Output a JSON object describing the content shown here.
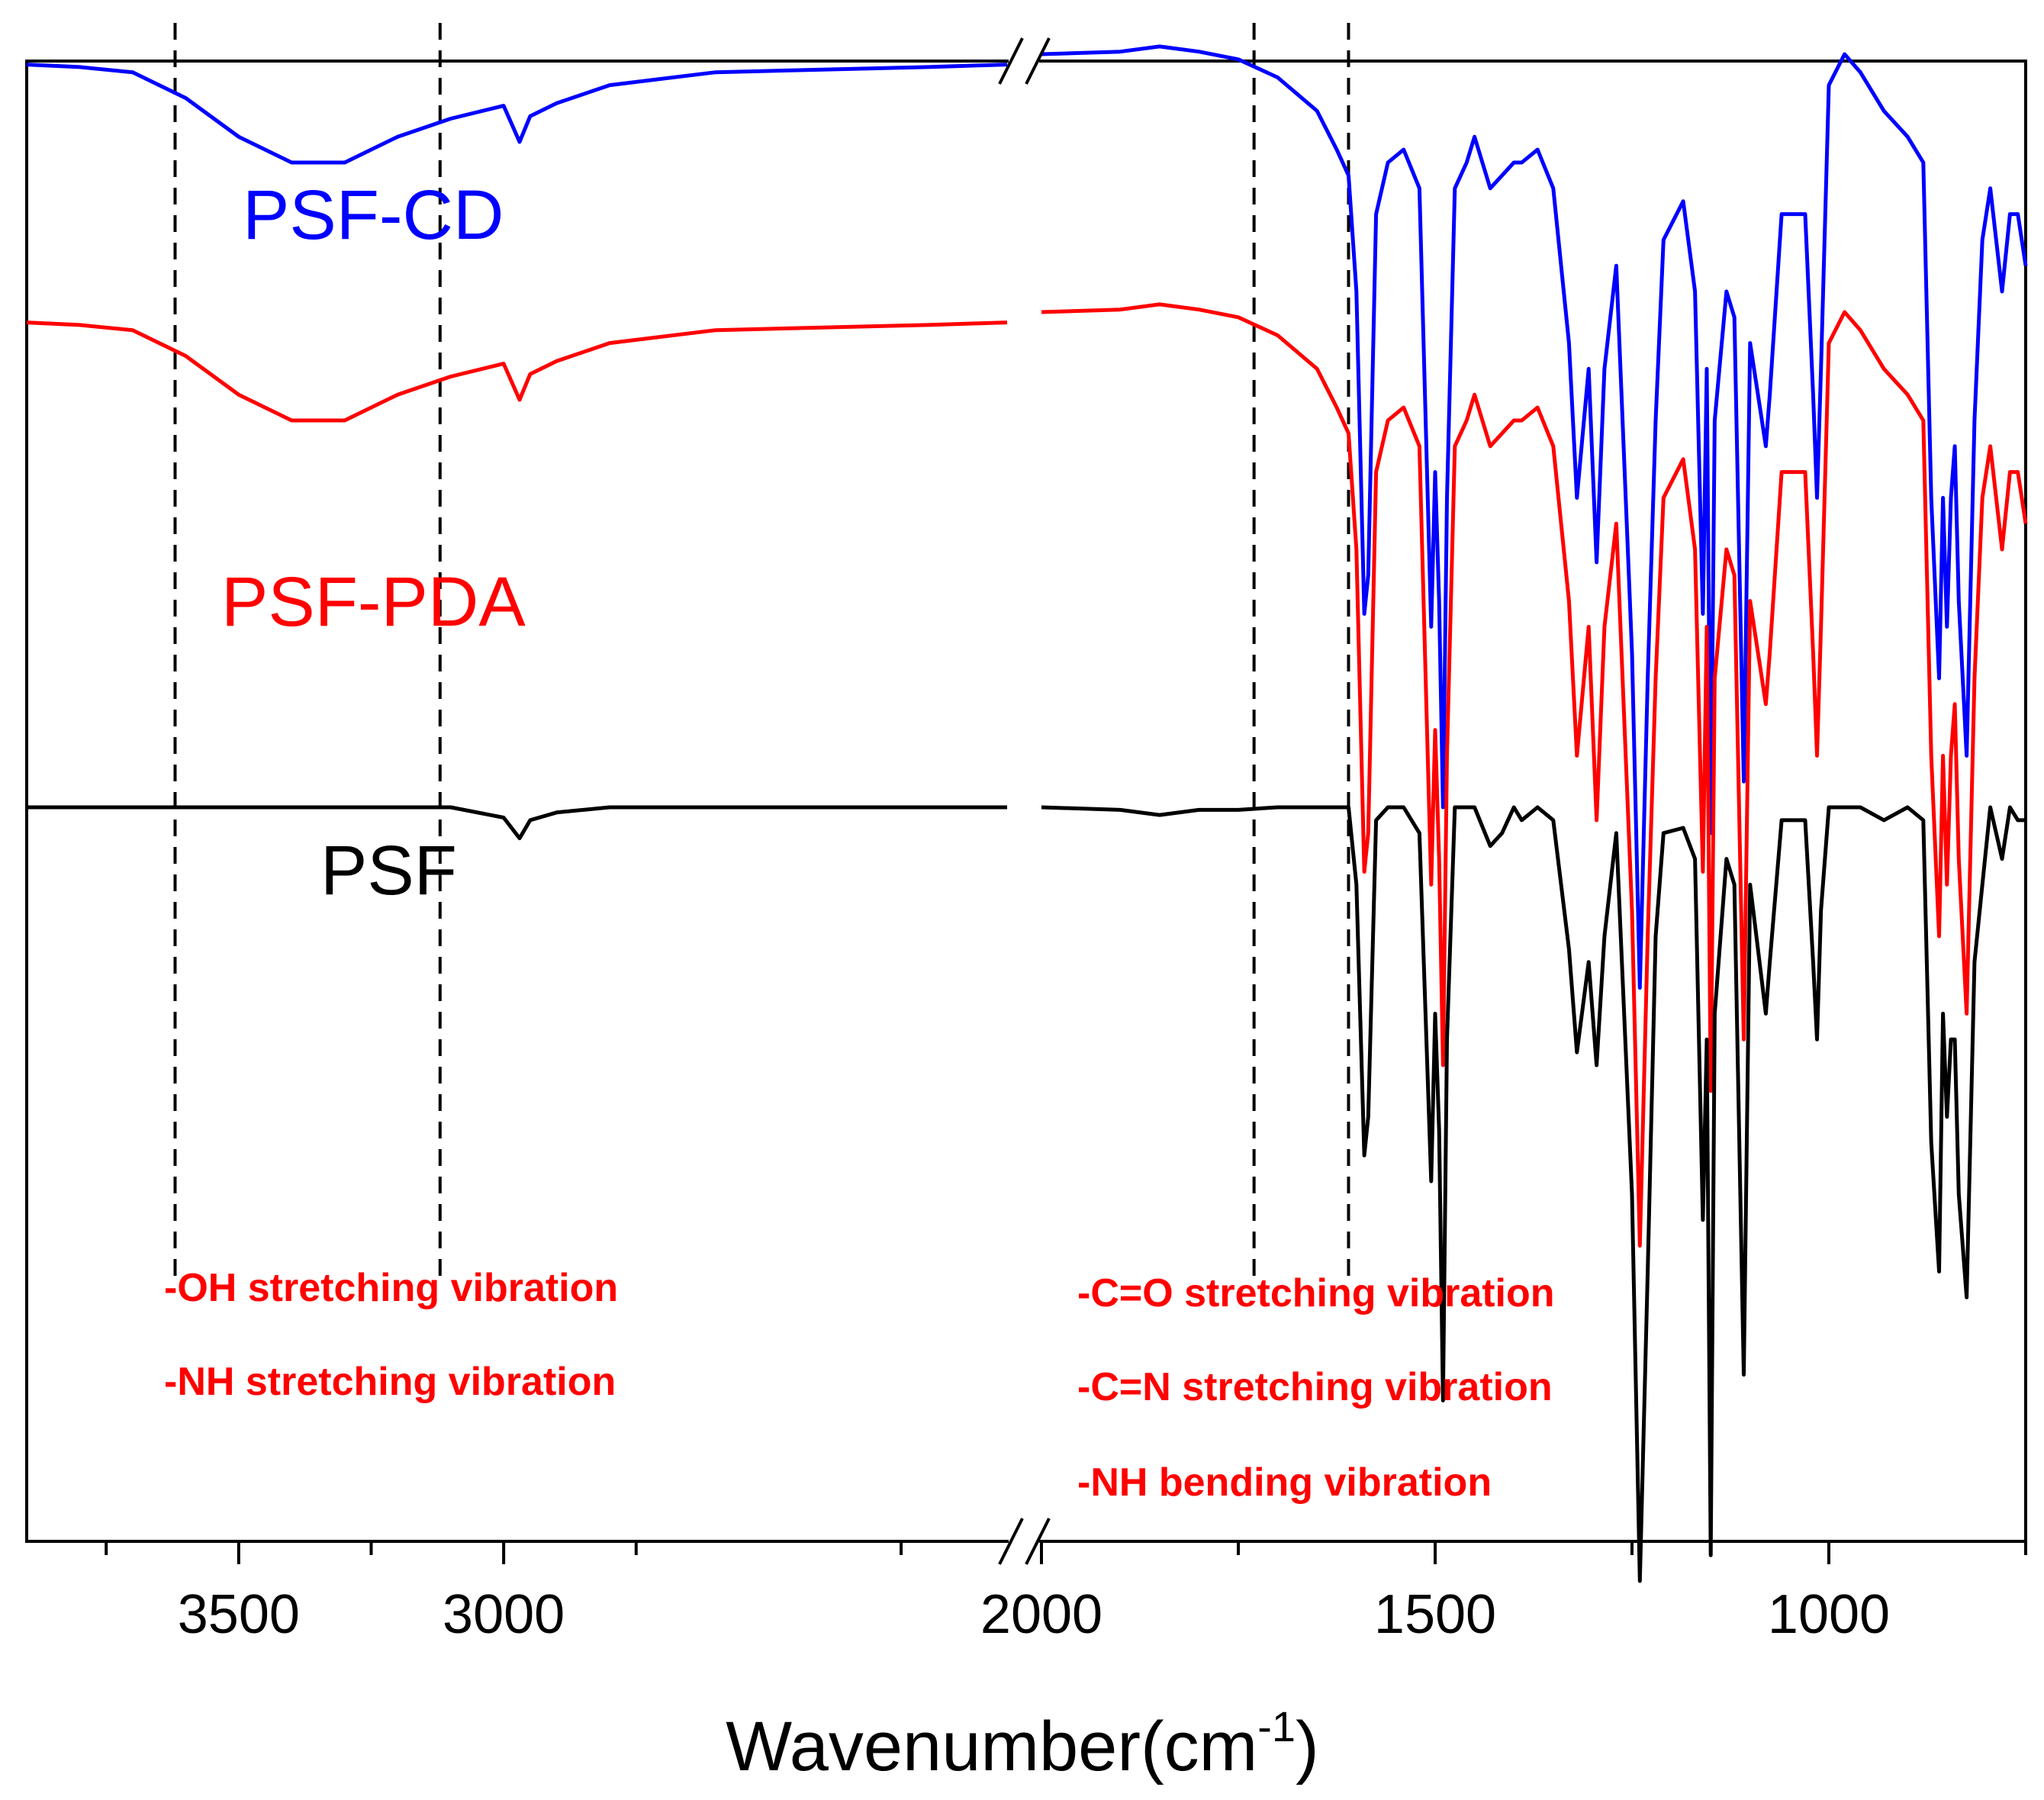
{
  "chart_data": {
    "type": "line",
    "title": "",
    "xlabel": "Wavenumber(cm",
    "xlabel_sup": "-1",
    "ylabel": "",
    "x_axis": {
      "reversed": true,
      "broken": true,
      "segments": [
        {
          "xlim": [
            3900,
            2050
          ],
          "ticks": [
            3500,
            3000
          ]
        },
        {
          "xlim": [
            2000,
            750
          ],
          "ticks": [
            2000,
            1500,
            1000
          ]
        }
      ],
      "minor_ticks": [
        3750,
        3250,
        2750,
        2250,
        1750,
        1250,
        750
      ]
    },
    "y_ticks_shown": false,
    "grid": false,
    "legend": "none",
    "series_labels_inline": true,
    "series": [
      {
        "name": "PSF-CD",
        "color": "#0000ff",
        "label_color": "#0000ff",
        "offset": 2.0,
        "x": [
          3900,
          3800,
          3700,
          3600,
          3500,
          3400,
          3300,
          3200,
          3100,
          3000,
          2970,
          2950,
          2900,
          2800,
          2600,
          2400,
          2200,
          2050,
          2000,
          1900,
          1850,
          1800,
          1750,
          1700,
          1650,
          1625,
          1610,
          1600,
          1590,
          1585,
          1575,
          1560,
          1540,
          1520,
          1505,
          1500,
          1495,
          1490,
          1485,
          1475,
          1460,
          1450,
          1430,
          1415,
          1400,
          1390,
          1370,
          1350,
          1330,
          1320,
          1305,
          1295,
          1285,
          1270,
          1250,
          1240,
          1230,
          1220,
          1210,
          1185,
          1170,
          1160,
          1155,
          1150,
          1145,
          1130,
          1120,
          1108,
          1100,
          1080,
          1075,
          1060,
          1030,
          1020,
          1015,
          1010,
          1000,
          980,
          960,
          930,
          900,
          880,
          870,
          860,
          855,
          850,
          845,
          840,
          835,
          825,
          815,
          805,
          795,
          780,
          770,
          760,
          750
        ],
        "y": [
          0.88,
          0.87,
          0.85,
          0.75,
          0.6,
          0.5,
          0.5,
          0.6,
          0.67,
          0.72,
          0.58,
          0.68,
          0.73,
          0.8,
          0.85,
          0.86,
          0.87,
          0.88,
          0.92,
          0.93,
          0.95,
          0.93,
          0.9,
          0.83,
          0.7,
          0.55,
          0.45,
          0.0,
          -1.25,
          -1.1,
          0.3,
          0.5,
          0.55,
          0.4,
          -1.3,
          -0.7,
          -1.2,
          -2.0,
          -0.8,
          0.4,
          0.5,
          0.6,
          0.4,
          0.45,
          0.5,
          0.5,
          0.55,
          0.4,
          -0.2,
          -0.8,
          -0.3,
          -1.05,
          -0.3,
          0.1,
          -1.4,
          -2.7,
          -1.5,
          -0.5,
          0.2,
          0.35,
          0.0,
          -1.25,
          -0.3,
          -2.1,
          -0.5,
          0.0,
          -0.1,
          -1.9,
          -0.2,
          -0.6,
          -0.4,
          0.3,
          0.3,
          -0.4,
          -0.8,
          -0.3,
          0.8,
          0.92,
          0.85,
          0.7,
          0.6,
          0.5,
          -0.8,
          -1.5,
          -0.8,
          -1.3,
          -0.8,
          -0.6,
          -1.2,
          -1.8,
          -0.5,
          0.2,
          0.4,
          0.0,
          0.3,
          0.3,
          0.1
        ]
      },
      {
        "name": "PSF-PDA",
        "color": "#ff0000",
        "label_color": "#ff0000",
        "offset": 1.0,
        "x": [
          3900,
          3800,
          3700,
          3600,
          3500,
          3400,
          3300,
          3200,
          3100,
          3000,
          2970,
          2950,
          2900,
          2800,
          2600,
          2400,
          2200,
          2050,
          2000,
          1900,
          1850,
          1800,
          1750,
          1700,
          1650,
          1625,
          1610,
          1600,
          1590,
          1585,
          1575,
          1560,
          1540,
          1520,
          1505,
          1500,
          1495,
          1490,
          1485,
          1475,
          1460,
          1450,
          1430,
          1415,
          1400,
          1390,
          1370,
          1350,
          1330,
          1320,
          1305,
          1295,
          1285,
          1270,
          1250,
          1240,
          1230,
          1220,
          1210,
          1185,
          1170,
          1160,
          1155,
          1150,
          1145,
          1130,
          1120,
          1108,
          1100,
          1080,
          1075,
          1060,
          1030,
          1020,
          1015,
          1010,
          1000,
          980,
          960,
          930,
          900,
          880,
          870,
          860,
          855,
          850,
          845,
          840,
          835,
          825,
          815,
          805,
          795,
          780,
          770,
          760,
          750
        ],
        "y": [
          0.88,
          0.87,
          0.85,
          0.75,
          0.6,
          0.5,
          0.5,
          0.6,
          0.67,
          0.72,
          0.58,
          0.68,
          0.73,
          0.8,
          0.85,
          0.86,
          0.87,
          0.88,
          0.92,
          0.93,
          0.95,
          0.93,
          0.9,
          0.83,
          0.7,
          0.55,
          0.45,
          0.0,
          -1.25,
          -1.1,
          0.3,
          0.5,
          0.55,
          0.4,
          -1.3,
          -0.7,
          -1.2,
          -2.0,
          -0.8,
          0.4,
          0.5,
          0.6,
          0.4,
          0.45,
          0.5,
          0.5,
          0.55,
          0.4,
          -0.2,
          -0.8,
          -0.3,
          -1.05,
          -0.3,
          0.1,
          -1.4,
          -2.7,
          -1.5,
          -0.5,
          0.2,
          0.35,
          0.0,
          -1.25,
          -0.3,
          -2.1,
          -0.5,
          0.0,
          -0.1,
          -1.9,
          -0.2,
          -0.6,
          -0.4,
          0.3,
          0.3,
          -0.4,
          -0.8,
          -0.3,
          0.8,
          0.92,
          0.85,
          0.7,
          0.6,
          0.5,
          -0.8,
          -1.5,
          -0.8,
          -1.3,
          -0.8,
          -0.6,
          -1.2,
          -1.8,
          -0.5,
          0.2,
          0.4,
          0.0,
          0.3,
          0.3,
          0.1
        ]
      },
      {
        "name": "PSF",
        "color": "#000000",
        "label_color": "#000000",
        "offset": 0.0,
        "x": [
          3900,
          3800,
          3700,
          3600,
          3500,
          3400,
          3300,
          3200,
          3100,
          3000,
          2970,
          2950,
          2900,
          2800,
          2600,
          2400,
          2200,
          2050,
          2000,
          1900,
          1850,
          1800,
          1750,
          1700,
          1650,
          1625,
          1610,
          1600,
          1590,
          1585,
          1575,
          1560,
          1540,
          1520,
          1505,
          1500,
          1495,
          1490,
          1485,
          1475,
          1460,
          1450,
          1430,
          1415,
          1400,
          1390,
          1370,
          1350,
          1330,
          1320,
          1305,
          1295,
          1285,
          1270,
          1250,
          1240,
          1230,
          1220,
          1210,
          1185,
          1170,
          1160,
          1155,
          1150,
          1145,
          1130,
          1120,
          1108,
          1100,
          1080,
          1075,
          1060,
          1030,
          1020,
          1015,
          1010,
          1000,
          980,
          960,
          930,
          900,
          880,
          870,
          860,
          855,
          850,
          845,
          840,
          835,
          825,
          815,
          805,
          795,
          780,
          770,
          760,
          750
        ],
        "y": [
          0.0,
          0.0,
          0.0,
          0.0,
          0.0,
          0.0,
          0.0,
          0.0,
          0.0,
          -0.04,
          -0.12,
          -0.05,
          -0.02,
          0.0,
          0.0,
          0.0,
          0.0,
          0.0,
          0.0,
          -0.01,
          -0.03,
          -0.01,
          -0.01,
          0.0,
          0.0,
          0.0,
          0.0,
          -0.3,
          -1.35,
          -1.2,
          -0.05,
          0.0,
          0.0,
          -0.1,
          -1.45,
          -0.8,
          -1.25,
          -2.3,
          -0.9,
          0.0,
          0.0,
          0.0,
          -0.15,
          -0.1,
          0.0,
          -0.05,
          0.0,
          -0.05,
          -0.55,
          -0.95,
          -0.6,
          -1.0,
          -0.5,
          -0.1,
          -1.5,
          -3.0,
          -1.8,
          -0.5,
          -0.1,
          -0.08,
          -0.2,
          -1.6,
          -0.9,
          -2.9,
          -0.8,
          -0.2,
          -0.3,
          -2.2,
          -0.3,
          -0.8,
          -0.6,
          -0.05,
          -0.05,
          -0.6,
          -0.9,
          -0.4,
          0.0,
          0.0,
          0.0,
          -0.05,
          0.0,
          -0.05,
          -1.3,
          -1.8,
          -0.8,
          -1.2,
          -0.9,
          -0.9,
          -1.5,
          -1.9,
          -0.6,
          -0.3,
          0.0,
          -0.2,
          0.0,
          -0.05,
          -0.05
        ]
      }
    ],
    "vertical_markers": [
      3620,
      3120,
      1730,
      1610
    ],
    "annotations_left": [
      "-OH stretching vibration",
      "-NH stretching vibration"
    ],
    "annotations_right": [
      "-C=O stretching vibration",
      "-C=N stretching vibration",
      "-NH bending vibration"
    ],
    "annotation_color": "#ff0000"
  }
}
